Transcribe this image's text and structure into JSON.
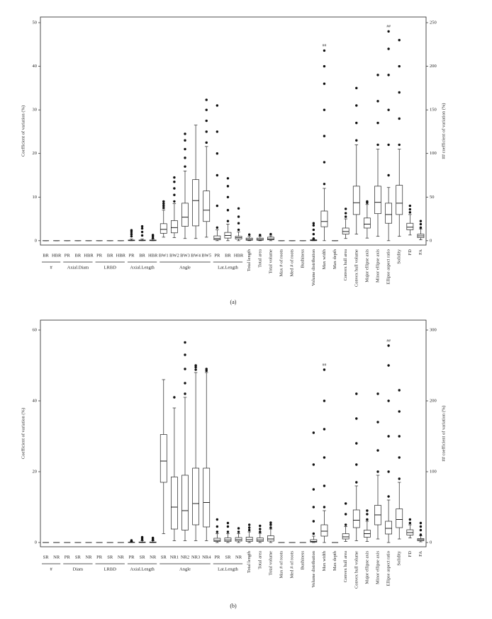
{
  "chart_data": [
    {
      "type": "box",
      "caption": "(a)",
      "ylabel": "Coefficient of variation (%)",
      "y2label": "## coefficient of variation (%)",
      "ylim": [
        -1,
        51.3
      ],
      "yticks": [
        0,
        10,
        20,
        30,
        40,
        50
      ],
      "y2lim": [
        -5,
        256.5
      ],
      "y2ticks": [
        0,
        50,
        100,
        150,
        200,
        250
      ],
      "boxes": [
        {
          "label": "BR",
          "group": "#",
          "stats": [
            0,
            0,
            0,
            0,
            0
          ],
          "outliers": []
        },
        {
          "label": "HBR",
          "group": "#",
          "stats": [
            0,
            0,
            0,
            0,
            0
          ],
          "outliers": []
        },
        {
          "label": "PR",
          "group": "Axial.Diam",
          "stats": [
            0,
            0,
            0,
            0,
            0
          ],
          "outliers": []
        },
        {
          "label": "BR",
          "group": "Axial.Diam",
          "stats": [
            0,
            0,
            0,
            0,
            0
          ],
          "outliers": []
        },
        {
          "label": "HBR",
          "group": "Axial.Diam",
          "stats": [
            0,
            0,
            0,
            0,
            0
          ],
          "outliers": []
        },
        {
          "label": "PR",
          "group": "LRBD",
          "stats": [
            0,
            0,
            0,
            0,
            0
          ],
          "outliers": []
        },
        {
          "label": "BR",
          "group": "LRBD",
          "stats": [
            0,
            0,
            0,
            0,
            0
          ],
          "outliers": []
        },
        {
          "label": "HBR",
          "group": "LRBD",
          "stats": [
            0,
            0,
            0,
            0,
            0
          ],
          "outliers": []
        },
        {
          "label": "PR",
          "group": "Axial.Length",
          "stats": [
            0,
            0,
            0.05,
            0.15,
            0.4
          ],
          "outliers": [
            1.0,
            1.5,
            2.0,
            2.4
          ]
        },
        {
          "label": "BR",
          "group": "Axial.Length",
          "stats": [
            0,
            0,
            0.05,
            0.15,
            0.4
          ],
          "outliers": [
            1.2,
            2.0,
            2.8,
            3.3
          ]
        },
        {
          "label": "HBR",
          "group": "Axial.Length",
          "stats": [
            0,
            0,
            0.05,
            0.15,
            0.4
          ],
          "outliers": [
            0.6,
            1.0,
            1.3
          ]
        },
        {
          "label": "BW1",
          "group": "Angle",
          "stats": [
            0.8,
            1.7,
            2.6,
            3.9,
            7
          ],
          "outliers": [
            7.5,
            8,
            8.5,
            9
          ]
        },
        {
          "label": "BW2",
          "group": "Angle",
          "stats": [
            0.7,
            1.8,
            3.0,
            4.6,
            8.5
          ],
          "outliers": [
            9,
            10.5,
            12,
            13.5,
            14.5
          ]
        },
        {
          "label": "BW3",
          "group": "Angle",
          "stats": [
            0.5,
            3.3,
            5.4,
            8.6,
            16
          ],
          "outliers": [
            17,
            19,
            21,
            23,
            24.5
          ]
        },
        {
          "label": "BW4",
          "group": "Angle",
          "stats": [
            0.5,
            3.4,
            9.2,
            14,
            26.5
          ],
          "outliers": []
        },
        {
          "label": "BW5",
          "group": "Angle",
          "stats": [
            0.8,
            4.4,
            7.0,
            11.4,
            21.6
          ],
          "outliers": [
            22.5,
            25,
            27.5,
            30,
            32.3
          ]
        },
        {
          "label": "PR",
          "group": "Lat.Length",
          "stats": [
            0,
            0.2,
            0.5,
            1.1,
            2.5
          ],
          "outliers": [
            3,
            8,
            15,
            20,
            25,
            31
          ]
        },
        {
          "label": "BR",
          "group": "Lat.Length",
          "stats": [
            0,
            0.6,
            1.2,
            1.9,
            3.8
          ],
          "outliers": [
            4.5,
            7,
            10,
            12.5,
            14.3
          ]
        },
        {
          "label": "HBR",
          "group": "Lat.Length",
          "stats": [
            0,
            0.4,
            0.7,
            1.0,
            2
          ],
          "outliers": [
            2.5,
            4,
            5.5,
            7.4
          ]
        },
        {
          "label": "Total length",
          "stats": [
            0,
            0.1,
            0.3,
            0.6,
            1.0
          ],
          "outliers": [
            1.4
          ]
        },
        {
          "label": "Total area",
          "stats": [
            0,
            0.1,
            0.3,
            0.6,
            1.0
          ],
          "outliers": [
            1.3
          ]
        },
        {
          "label": "Total volume",
          "stats": [
            0,
            0.2,
            0.4,
            0.8,
            1.1
          ],
          "outliers": [
            1.5
          ]
        },
        {
          "label": "Max # of roots",
          "stats": [
            0,
            0,
            0,
            0,
            0
          ],
          "outliers": []
        },
        {
          "label": "Med # of roots",
          "stats": [
            0,
            0,
            0,
            0,
            0
          ],
          "outliers": []
        },
        {
          "label": "Bushiness",
          "stats": [
            0,
            0,
            0,
            0,
            0
          ],
          "outliers": []
        },
        {
          "label": "Volume distribution",
          "stats": [
            0,
            0,
            0.1,
            0.2,
            0.3
          ],
          "outliers": [
            0.5,
            1.5,
            2.5,
            3.5,
            4
          ]
        },
        {
          "label": "Max width",
          "axis": "y2",
          "annotation": "##",
          "stats": [
            0,
            16,
            22,
            34,
            60
          ],
          "outliers": [
            65,
            90,
            120,
            150,
            180,
            200,
            218
          ]
        },
        {
          "label": "Max depth",
          "stats": [
            0,
            0,
            0,
            0,
            0
          ],
          "outliers": []
        },
        {
          "label": "Convex hull area",
          "stats": [
            0.5,
            1.5,
            2.1,
            2.9,
            5
          ],
          "outliers": [
            5.5,
            6.3,
            7.3
          ]
        },
        {
          "label": "Convex hull volume",
          "stats": [
            1.5,
            6,
            8.7,
            12.5,
            22
          ],
          "outliers": [
            23,
            27,
            31,
            35
          ]
        },
        {
          "label": "Major ellipse axis",
          "stats": [
            0.6,
            2.9,
            3.8,
            5.2,
            8.3
          ],
          "outliers": [
            8.7,
            9
          ]
        },
        {
          "label": "Minor ellipse axis",
          "stats": [
            1,
            6.2,
            8.8,
            12.5,
            21
          ],
          "outliers": [
            22,
            27,
            32,
            38
          ]
        },
        {
          "label": "Ellipse aspect ratio",
          "axis": "y2",
          "annotation": "##",
          "stats": [
            0,
            20,
            30,
            43,
            61
          ],
          "outliers": [
            75,
            110,
            150,
            190,
            220,
            240
          ]
        },
        {
          "label": "Solidity",
          "stats": [
            1,
            6,
            8.6,
            12.7,
            21
          ],
          "outliers": [
            22,
            28,
            34,
            40,
            46
          ]
        },
        {
          "label": "FD",
          "stats": [
            1.3,
            2.5,
            3.1,
            4.0,
            6
          ],
          "outliers": [
            6.5,
            7.2,
            8
          ]
        },
        {
          "label": "FA",
          "stats": [
            0.2,
            0.7,
            1.1,
            1.5,
            2.7
          ],
          "outliers": [
            3,
            3.8,
            4.5
          ]
        }
      ]
    },
    {
      "type": "box",
      "caption": "(b)",
      "ylabel": "Coefficient of variation (%)",
      "y2label": "## coefficient of variation (%)",
      "ylim": [
        -1.2,
        62.8
      ],
      "yticks": [
        0,
        20,
        40,
        60
      ],
      "y2lim": [
        -6,
        314
      ],
      "y2ticks": [
        0,
        100,
        200,
        300
      ],
      "boxes": [
        {
          "label": "SR",
          "group": "#",
          "stats": [
            0,
            0,
            0,
            0,
            0
          ],
          "outliers": []
        },
        {
          "label": "NR",
          "group": "#",
          "stats": [
            0,
            0,
            0,
            0,
            0
          ],
          "outliers": []
        },
        {
          "label": "PR",
          "group": "Diam",
          "stats": [
            0,
            0,
            0,
            0,
            0
          ],
          "outliers": []
        },
        {
          "label": "SR",
          "group": "Diam",
          "stats": [
            0,
            0,
            0,
            0,
            0
          ],
          "outliers": []
        },
        {
          "label": "NR",
          "group": "Diam",
          "stats": [
            0,
            0,
            0,
            0,
            0
          ],
          "outliers": []
        },
        {
          "label": "PR",
          "group": "LRBD",
          "stats": [
            0,
            0,
            0,
            0,
            0
          ],
          "outliers": []
        },
        {
          "label": "SR",
          "group": "LRBD",
          "stats": [
            0,
            0,
            0,
            0,
            0
          ],
          "outliers": []
        },
        {
          "label": "NR",
          "group": "LRBD",
          "stats": [
            0,
            0,
            0,
            0,
            0
          ],
          "outliers": []
        },
        {
          "label": "PR",
          "group": "Axial.Length",
          "stats": [
            0,
            0,
            0.05,
            0.1,
            0.3
          ],
          "outliers": [
            0.4,
            0.6
          ]
        },
        {
          "label": "SR",
          "group": "Axial.Length",
          "stats": [
            0,
            0,
            0.05,
            0.15,
            0.5
          ],
          "outliers": [
            0.8,
            1.2,
            1.5
          ]
        },
        {
          "label": "NR",
          "group": "Axial.Length",
          "stats": [
            0,
            0,
            0.05,
            0.15,
            0.5
          ],
          "outliers": [
            0.7,
            1.0,
            1.3
          ]
        },
        {
          "label": "SR",
          "group": "Angle",
          "stats": [
            2.5,
            17,
            23,
            30.5,
            46
          ],
          "outliers": []
        },
        {
          "label": "NR1",
          "group": "Angle",
          "stats": [
            0.5,
            3.8,
            10,
            18.5,
            38
          ],
          "outliers": [
            41
          ]
        },
        {
          "label": "NR2",
          "group": "Angle",
          "stats": [
            0.5,
            3.5,
            9,
            19,
            41
          ],
          "outliers": [
            42,
            45,
            49,
            53,
            56.5
          ]
        },
        {
          "label": "NR3",
          "group": "Angle",
          "stats": [
            0.5,
            5,
            11,
            21,
            48
          ],
          "outliers": [
            48.8,
            49.5,
            50
          ]
        },
        {
          "label": "NR4",
          "group": "Angle",
          "stats": [
            0.5,
            4.4,
            11.3,
            21,
            48
          ],
          "outliers": [
            48.5,
            49
          ]
        },
        {
          "label": "PR",
          "group": "Lat.Length",
          "stats": [
            0,
            0.3,
            0.6,
            1.2,
            2.5
          ],
          "outliers": [
            3,
            4.5,
            6.5
          ]
        },
        {
          "label": "SR",
          "group": "Lat.Length",
          "stats": [
            0,
            0.3,
            0.7,
            1.3,
            2.5
          ],
          "outliers": [
            3,
            4.5,
            5.5
          ]
        },
        {
          "label": "NR",
          "group": "Lat.Length",
          "stats": [
            0,
            0.4,
            0.8,
            1.4,
            2.5
          ],
          "outliers": [
            3,
            4
          ]
        },
        {
          "label": "Total length",
          "stats": [
            0,
            0.3,
            0.8,
            1.5,
            3
          ],
          "outliers": [
            3.5,
            4.2,
            5
          ]
        },
        {
          "label": "Total area",
          "stats": [
            0,
            0.3,
            0.7,
            1.3,
            2.6
          ],
          "outliers": [
            3,
            3.8,
            4.7
          ]
        },
        {
          "label": "Total volume",
          "stats": [
            0,
            0.4,
            1,
            1.9,
            3.8
          ],
          "outliers": [
            4.2,
            5,
            5.6
          ]
        },
        {
          "label": "Max # of roots",
          "stats": [
            0,
            0,
            0,
            0,
            0
          ],
          "outliers": []
        },
        {
          "label": "Med # of roots",
          "stats": [
            0,
            0,
            0,
            0,
            0
          ],
          "outliers": []
        },
        {
          "label": "Bushiness",
          "stats": [
            0,
            0,
            0,
            0,
            0
          ],
          "outliers": []
        },
        {
          "label": "Volume distribution",
          "stats": [
            0,
            0.1,
            0.3,
            0.8,
            1.8
          ],
          "outliers": [
            2.5,
            6,
            10,
            15,
            22,
            31
          ]
        },
        {
          "label": "Max width",
          "axis": "y2",
          "annotation": "##",
          "stats": [
            0,
            9,
            16,
            25,
            45
          ],
          "outliers": [
            50,
            80,
            120,
            160,
            200,
            244
          ]
        },
        {
          "label": "Max depth",
          "stats": [
            0,
            0,
            0,
            0,
            0
          ],
          "outliers": []
        },
        {
          "label": "Convex hull area",
          "stats": [
            0.3,
            1,
            1.6,
            2.5,
            4.5
          ],
          "outliers": [
            5,
            8,
            11
          ]
        },
        {
          "label": "Convex hull volume",
          "stats": [
            0.5,
            4.2,
            6.3,
            9.2,
            16
          ],
          "outliers": [
            17,
            22,
            28,
            35,
            42
          ]
        },
        {
          "label": "Major ellipse axis",
          "stats": [
            0.3,
            1.5,
            2.5,
            3.5,
            6
          ],
          "outliers": [
            6.5,
            8,
            9
          ]
        },
        {
          "label": "Minor ellipse axis",
          "stats": [
            1,
            5,
            7.8,
            10.5,
            19
          ],
          "outliers": [
            20,
            26,
            34,
            42
          ]
        },
        {
          "label": "Ellipse aspect ratio",
          "axis": "y2",
          "annotation": "##",
          "stats": [
            0,
            12,
            20,
            30,
            60
          ],
          "outliers": [
            65,
            100,
            150,
            200,
            250,
            278
          ]
        },
        {
          "label": "Solidity",
          "stats": [
            1,
            4.2,
            6.5,
            9.5,
            17
          ],
          "outliers": [
            18,
            24,
            30,
            37,
            43
          ]
        },
        {
          "label": "FD",
          "stats": [
            1.3,
            2.1,
            2.8,
            3.6,
            5
          ],
          "outliers": [
            5.5,
            6.5
          ]
        },
        {
          "label": "FA",
          "stats": [
            0.2,
            0.5,
            0.8,
            1.1,
            1.9
          ],
          "outliers": [
            2.2,
            3.5,
            4.5,
            5.5
          ]
        }
      ]
    }
  ]
}
